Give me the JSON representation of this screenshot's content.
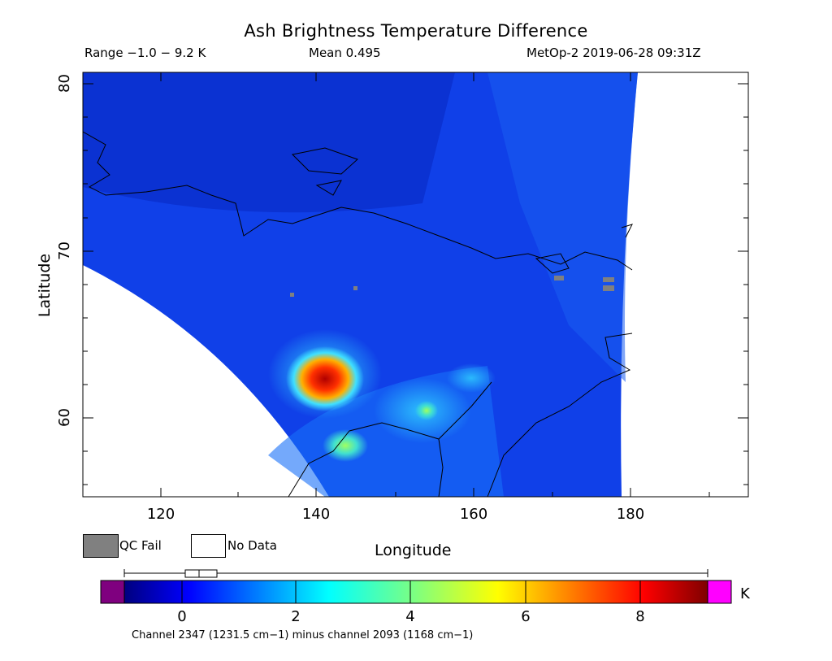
{
  "header": {
    "title": "Ash Brightness Temperature Difference",
    "range": "Range −1.0 − 9.2 K",
    "mean": "Mean 0.495",
    "satellite_time": "MetOp-2 2019-06-28 09:31Z"
  },
  "axes": {
    "x_label": "Longitude",
    "y_label": "Latitude",
    "x_ticks": [
      "120",
      "140",
      "160",
      "180"
    ],
    "y_ticks": [
      "80",
      "70",
      "60"
    ]
  },
  "legend": {
    "qc_fail": "QC Fail",
    "no_data": "No Data",
    "qc_fail_color": "#808080",
    "no_data_color": "#ffffff"
  },
  "colorbar": {
    "unit": "K",
    "ticks": [
      "0",
      "2",
      "4",
      "6",
      "8"
    ],
    "caption": "Channel 2347 (1231.5 cm−1) minus channel 2093 (1168 cm−1)",
    "under_color": "#7f007f",
    "over_color": "#ff00ff"
  }
}
